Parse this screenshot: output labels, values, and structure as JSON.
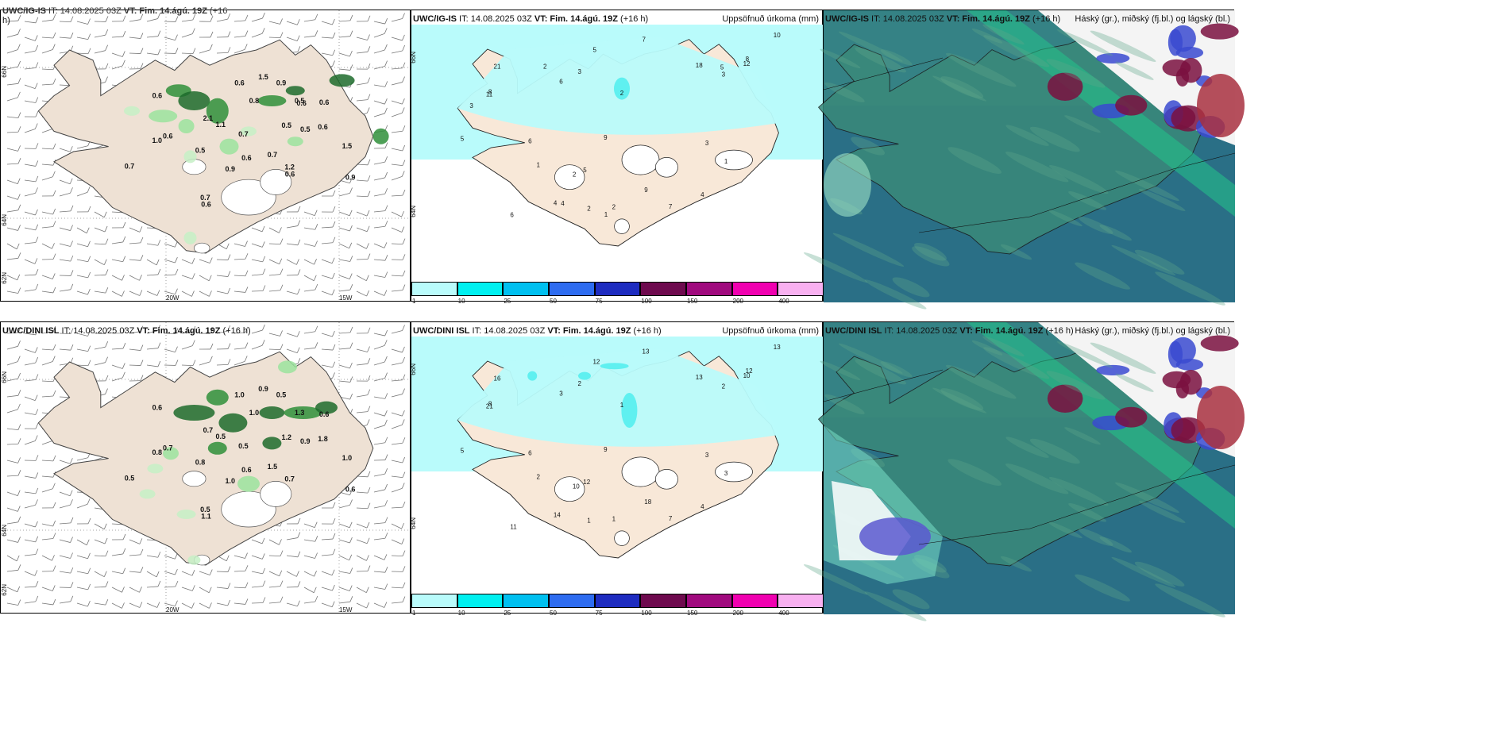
{
  "panels": [
    {
      "id": "p1",
      "title_bold": "UWC/IG-IS",
      "title_rest": " IT: 14.08.2025 03Z ",
      "vt_bold": "VT: Fim. 14.ágú. 19Z",
      "vt_rest": " (+16",
      "vt_wrap": "h)",
      "right": ""
    },
    {
      "id": "p2",
      "title_bold": "UWC/IG-IS",
      "title_rest": " IT: 14.08.2025 03Z ",
      "vt_bold": "VT: Fim. 14.ágú. 19Z",
      "vt_rest": " (+16 h)",
      "right": "Uppsöfnuð úrkoma (mm)"
    },
    {
      "id": "p3",
      "title_bold": "UWC/IG-IS",
      "title_rest": " IT: 14.08.2025 03Z ",
      "vt_bold": "VT: Fim. 14.ágú. 19Z",
      "vt_rest": " (+16 h)",
      "right": "Háský (gr.), miðský (fj.bl.) og lágský (bl.)"
    },
    {
      "id": "p4",
      "title_bold": "UWC/DINI ISL",
      "title_rest": " IT: 14.08.2025 03Z ",
      "vt_bold": "VT: Fim. 14.ágú. 19Z",
      "vt_rest": " (+16 h)",
      "right": ""
    },
    {
      "id": "p5",
      "title_bold": "UWC/DINI ISL",
      "title_rest": " IT: 14.08.2025 03Z ",
      "vt_bold": "VT: Fim. 14.ágú. 19Z",
      "vt_rest": " (+16 h)",
      "right": "Uppsöfnuð úrkoma (mm)"
    },
    {
      "id": "p6",
      "title_bold": "UWC/DINI ISL",
      "title_rest": " IT: 14.08.2025 03Z ",
      "vt_bold": "VT: Fim. 14.ágú. 19Z",
      "vt_rest": " (+16 h)",
      "right": "Háský (gr.), miðský (fj.bl.) og lágský (bl.)"
    }
  ],
  "axes": {
    "lon_a": "20W",
    "lon_b": "15W",
    "lat_a": "66N",
    "lat_b": "64N",
    "lat_c": "62N"
  },
  "colorbar": {
    "ticks": [
      "1",
      "10",
      "25",
      "50",
      "75",
      "100",
      "150",
      "200",
      "400"
    ],
    "colors": [
      "#b9fbfb",
      "#00f0f0",
      "#00c0f0",
      "#2e6cf0",
      "#1e2cc0",
      "#6e0a4e",
      "#a00a7e",
      "#f000b0",
      "#f8b0f0"
    ]
  },
  "wind_labels_top": [
    "0.5",
    "1.0",
    "0.6",
    "1.5",
    "0.8",
    "0.9",
    "0.7",
    "0.6",
    "1.2",
    "0.5",
    "2.1",
    "1.5",
    "0.6",
    "1.1",
    "0.6",
    "0.5",
    "0.7",
    "0.5",
    "0.6",
    "0.6",
    "0.9",
    "0.7",
    "0.6",
    "0.7",
    "0.9",
    "0.6",
    "0.6"
  ],
  "wind_labels_bottom": [
    "0.8",
    "0.8",
    "0.6",
    "0.9",
    "1.0",
    "1.0",
    "1.5",
    "1.8",
    "0.7",
    "0.9",
    "0.7",
    "1.0",
    "1.1",
    "0.5",
    "0.6",
    "1.2",
    "0.5",
    "1.3",
    "0.6",
    "1.0",
    "0.6",
    "0.5",
    "0.7",
    "0.5",
    "0.5"
  ],
  "precip_labels_top": [
    "2",
    "5",
    "7",
    "6",
    "5",
    "4",
    "10",
    "8",
    "9",
    "11",
    "21",
    "18",
    "12",
    "9",
    "8",
    "7",
    "6",
    "5",
    "4",
    "3",
    "3",
    "2",
    "2",
    "1",
    "1",
    "2",
    "3",
    "6",
    "4",
    "5",
    "3",
    "2",
    "1"
  ],
  "precip_labels_bottom": [
    "10",
    "12",
    "13",
    "11",
    "12",
    "14",
    "13",
    "12",
    "18",
    "21",
    "16",
    "13",
    "10",
    "9",
    "8",
    "7",
    "6",
    "5",
    "4",
    "3",
    "2",
    "1",
    "1",
    "3",
    "2",
    "1",
    "2",
    "3"
  ]
}
